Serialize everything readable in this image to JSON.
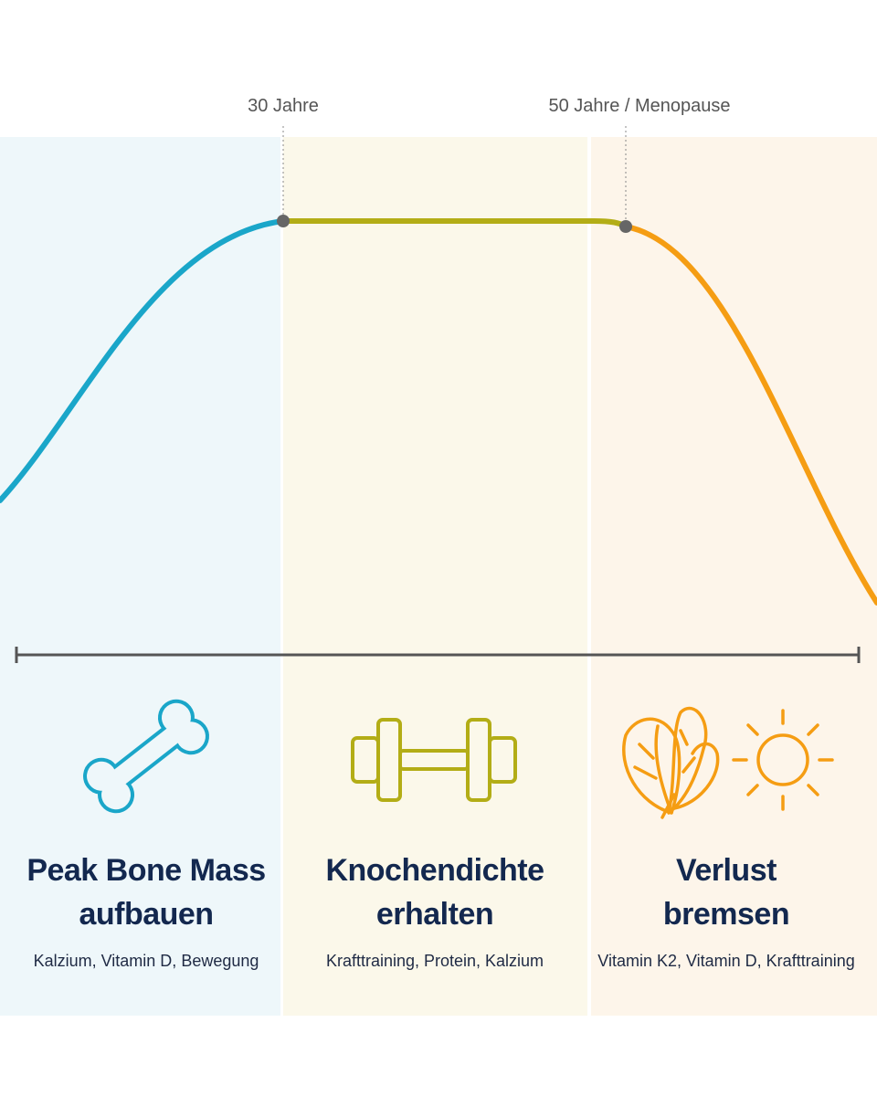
{
  "markers": [
    {
      "label": "30 Jahre"
    },
    {
      "label": "50 Jahre / Menopause"
    }
  ],
  "phases": [
    {
      "title": [
        "Peak Bone Mass",
        "aufbauen"
      ],
      "subtitle": "Kalzium, Vitamin D, Bewegung"
    },
    {
      "title": [
        "Knochendichte",
        "erhalten"
      ],
      "subtitle": "Krafttraining, Protein, Kalzium"
    },
    {
      "title": [
        "Verlust",
        "bremsen"
      ],
      "subtitle": "Vitamin K2, Vitamin D, Krafttraining"
    }
  ]
}
